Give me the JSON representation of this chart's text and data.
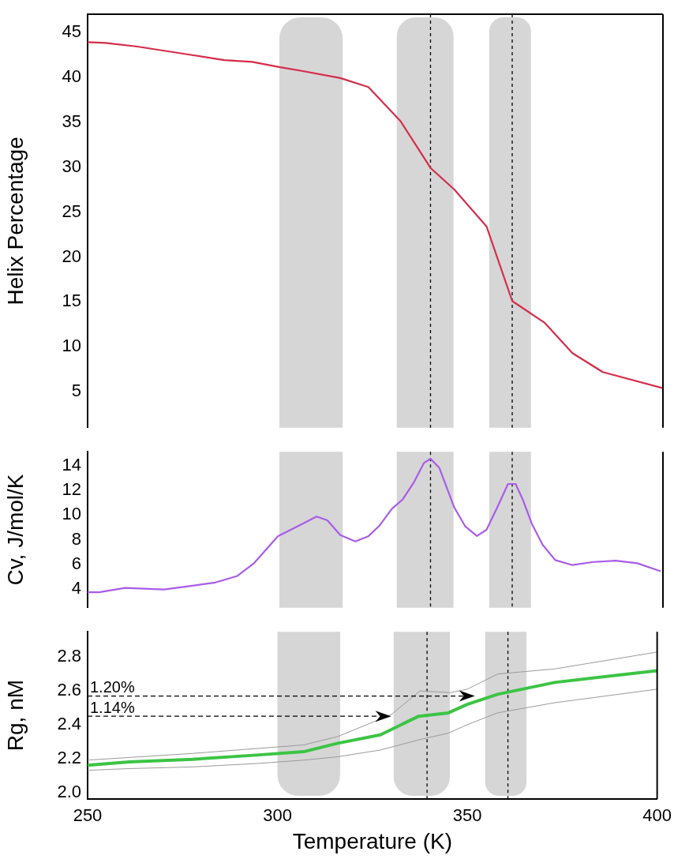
{
  "chart_data": [
    {
      "type": "line",
      "ylabel": "Helix Percentage",
      "tick_labels": "y",
      "grid": false,
      "legend": false,
      "marker": "none",
      "x": [
        250,
        254.7,
        263,
        276.6,
        285.6,
        292.9,
        300.2,
        305.8,
        315.9,
        323.2,
        331.6,
        339.4,
        345.6,
        354,
        360.7,
        369.1,
        376.4,
        384.3,
        400
      ],
      "series": [
        {
          "color": "#d42d4a",
          "values": [
            43.9,
            43.8,
            43.4,
            42.5,
            41.9,
            41.7,
            41.1,
            40.7,
            39.9,
            38.9,
            35.1,
            29.9,
            27.5,
            23.4,
            15.1,
            12.7,
            9.3,
            7.2,
            5.4
          ]
        }
      ],
      "xlim": [
        250,
        400
      ],
      "xticks": [
        250,
        300,
        350,
        400
      ],
      "ylim": [
        1,
        47
      ],
      "yticks": [
        5,
        10,
        15,
        20,
        25,
        30,
        35,
        40,
        45
      ],
      "bands": [
        {
          "axis": "x",
          "from": 300,
          "to": 316.5,
          "color": "#d6d6d6"
        },
        {
          "axis": "x",
          "from": 330.6,
          "to": 345.4,
          "color": "#d6d6d6"
        },
        {
          "axis": "x",
          "from": 354.7,
          "to": 365.6,
          "color": "#d6d6d6"
        }
      ],
      "ref_lines": [
        {
          "axis": "x",
          "value": 339.4,
          "line_style": "dashed"
        },
        {
          "axis": "x",
          "value": 360.7,
          "line_style": "dashed"
        }
      ]
    },
    {
      "type": "line",
      "ylabel": "Cv, J/mol/K",
      "tick_labels": "y",
      "grid": false,
      "legend": false,
      "marker": "none",
      "x": [
        250,
        253,
        259.8,
        269.9,
        277.7,
        283.3,
        288.9,
        293.4,
        299.6,
        304.6,
        309.7,
        312.5,
        315.9,
        319.8,
        323.2,
        326,
        329.3,
        332.1,
        335,
        337.7,
        339.4,
        341.7,
        345.6,
        348.4,
        351.5,
        354,
        356.8,
        359.6,
        361.6,
        363.5,
        365.8,
        368.6,
        371.9,
        376.4,
        382,
        387.6,
        393.3,
        399.4
      ],
      "series": [
        {
          "color": "#a95ce8",
          "values": [
            3.76,
            3.76,
            4.1,
            3.98,
            4.3,
            4.54,
            5.05,
            6.1,
            8.28,
            9.06,
            9.87,
            9.57,
            8.37,
            7.86,
            8.28,
            9.1,
            10.48,
            11.23,
            12.6,
            14.2,
            14.54,
            13.8,
            10.6,
            9.1,
            8.3,
            8.8,
            10.6,
            12.5,
            12.5,
            11.2,
            9.3,
            7.6,
            6.35,
            5.95,
            6.2,
            6.3,
            6.1,
            5.45
          ]
        }
      ],
      "xlim": [
        250,
        400
      ],
      "xticks": [
        250,
        300,
        350,
        400
      ],
      "ylim": [
        2.5,
        15.1
      ],
      "yticks": [
        4,
        6,
        8,
        10,
        12,
        14
      ],
      "bands": [
        {
          "axis": "x",
          "from": 300,
          "to": 316.5,
          "color": "#d6d6d6"
        },
        {
          "axis": "x",
          "from": 330.6,
          "to": 345.4,
          "color": "#d6d6d6"
        },
        {
          "axis": "x",
          "from": 354.7,
          "to": 365.6,
          "color": "#d6d6d6"
        }
      ],
      "ref_lines": [
        {
          "axis": "x",
          "value": 339.4,
          "line_style": "dashed"
        },
        {
          "axis": "x",
          "value": 360.7,
          "line_style": "dashed"
        }
      ]
    },
    {
      "type": "line",
      "xlabel": "Temperature (K)",
      "ylabel": "Rg, nM",
      "grid": false,
      "legend": false,
      "marker": "none",
      "x": [
        250,
        261,
        277.7,
        294.5,
        306.9,
        315.9,
        327.1,
        337.2,
        345,
        350,
        358,
        373,
        400
      ],
      "series": [
        {
          "color": "#3cc444",
          "values": [
            2.16,
            2.18,
            2.195,
            2.22,
            2.24,
            2.29,
            2.34,
            2.45,
            2.47,
            2.52,
            2.58,
            2.65,
            2.72
          ]
        },
        {
          "color": "#9a9a9a",
          "values": [
            2.13,
            2.14,
            2.15,
            2.17,
            2.19,
            2.21,
            2.25,
            2.31,
            2.35,
            2.4,
            2.47,
            2.53,
            2.61
          ]
        },
        {
          "color": "#9a9a9a",
          "x": [
            250,
            277.7,
            306.9,
            315.9,
            330,
            337.5,
            345.6,
            350,
            358,
            373,
            400
          ],
          "values": [
            2.19,
            2.23,
            2.28,
            2.33,
            2.46,
            2.6,
            2.59,
            2.61,
            2.7,
            2.73,
            2.83
          ]
        }
      ],
      "xlim": [
        250,
        400
      ],
      "xticks": [
        250,
        300,
        350,
        400
      ],
      "ylim": [
        1.96,
        2.95
      ],
      "yticks": [
        {
          "value": 2.0,
          "label": "2.0"
        },
        2.2,
        2.4,
        2.6,
        2.8
      ],
      "bands": [
        {
          "axis": "x",
          "from": 300,
          "to": 316.5,
          "color": "#d6d6d6"
        },
        {
          "axis": "x",
          "from": 330.6,
          "to": 345.4,
          "color": "#d6d6d6"
        },
        {
          "axis": "x",
          "from": 354.7,
          "to": 365.6,
          "color": "#d6d6d6"
        }
      ],
      "ref_lines": [
        {
          "axis": "x",
          "value": 339.4,
          "line_style": "dashed"
        },
        {
          "axis": "x",
          "value": 360.7,
          "line_style": "dashed"
        }
      ],
      "annotations": [
        "1.20%",
        "1.14%"
      ]
    }
  ]
}
